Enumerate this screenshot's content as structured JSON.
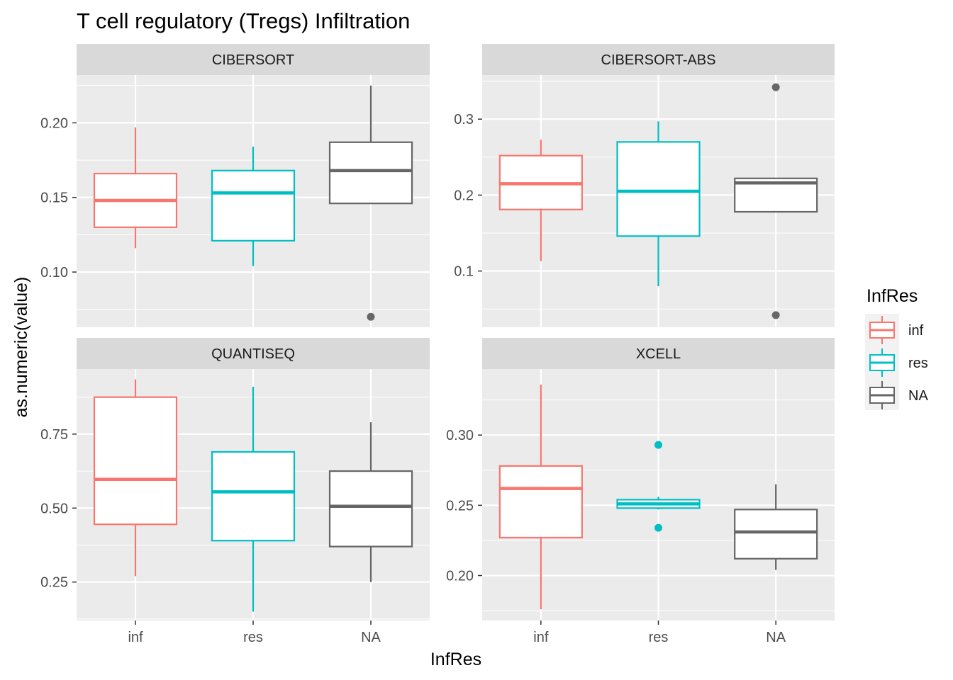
{
  "title": "T cell regulatory (Tregs) Infiltration",
  "xlabel": "InfRes",
  "ylabel": "as.numeric(value)",
  "legend": {
    "title": "InfRes",
    "items": [
      {
        "label": "inf",
        "color": "#F8766D"
      },
      {
        "label": "res",
        "color": "#00BFC4"
      },
      {
        "label": "NA",
        "color": "#666666"
      }
    ]
  },
  "chart_data": {
    "type": "box",
    "categories": [
      "inf",
      "res",
      "NA"
    ],
    "colors": {
      "inf": "#F8766D",
      "res": "#00BFC4",
      "NA": "#666666"
    },
    "grid": true,
    "legend_position": "right",
    "panels": [
      {
        "name": "CIBERSORT",
        "ylim": [
          0.063,
          0.232
        ],
        "yticks": [
          0.1,
          0.15,
          0.2
        ],
        "ytick_labels": [
          "0.10",
          "0.15",
          "0.20"
        ],
        "boxes": [
          {
            "category": "inf",
            "whisker_low": 0.116,
            "q1": 0.13,
            "median": 0.148,
            "q3": 0.166,
            "whisker_high": 0.197,
            "outliers": []
          },
          {
            "category": "res",
            "whisker_low": 0.104,
            "q1": 0.121,
            "median": 0.153,
            "q3": 0.168,
            "whisker_high": 0.184,
            "outliers": []
          },
          {
            "category": "NA",
            "whisker_low": 0.146,
            "q1": 0.146,
            "median": 0.168,
            "q3": 0.187,
            "whisker_high": 0.225,
            "outliers": [
              0.07
            ]
          }
        ]
      },
      {
        "name": "CIBERSORT-ABS",
        "ylim": [
          0.026,
          0.358
        ],
        "yticks": [
          0.1,
          0.2,
          0.3
        ],
        "ytick_labels": [
          "0.1",
          "0.2",
          "0.3"
        ],
        "boxes": [
          {
            "category": "inf",
            "whisker_low": 0.113,
            "q1": 0.181,
            "median": 0.215,
            "q3": 0.252,
            "whisker_high": 0.273,
            "outliers": []
          },
          {
            "category": "res",
            "whisker_low": 0.08,
            "q1": 0.146,
            "median": 0.205,
            "q3": 0.27,
            "whisker_high": 0.297,
            "outliers": []
          },
          {
            "category": "NA",
            "whisker_low": 0.178,
            "q1": 0.178,
            "median": 0.216,
            "q3": 0.222,
            "whisker_high": 0.222,
            "outliers": [
              0.342,
              0.042
            ]
          }
        ]
      },
      {
        "name": "QUANTISEQ",
        "ylim": [
          0.12,
          0.97
        ],
        "yticks": [
          0.25,
          0.5,
          0.75
        ],
        "ytick_labels": [
          "0.25",
          "0.50",
          "0.75"
        ],
        "boxes": [
          {
            "category": "inf",
            "whisker_low": 0.27,
            "q1": 0.445,
            "median": 0.597,
            "q3": 0.875,
            "whisker_high": 0.935,
            "outliers": []
          },
          {
            "category": "res",
            "whisker_low": 0.15,
            "q1": 0.39,
            "median": 0.555,
            "q3": 0.69,
            "whisker_high": 0.91,
            "outliers": []
          },
          {
            "category": "NA",
            "whisker_low": 0.25,
            "q1": 0.37,
            "median": 0.506,
            "q3": 0.625,
            "whisker_high": 0.79,
            "outliers": []
          }
        ]
      },
      {
        "name": "XCELL",
        "ylim": [
          0.168,
          0.347
        ],
        "yticks": [
          0.2,
          0.25,
          0.3
        ],
        "ytick_labels": [
          "0.20",
          "0.25",
          "0.30"
        ],
        "boxes": [
          {
            "category": "inf",
            "whisker_low": 0.176,
            "q1": 0.227,
            "median": 0.262,
            "q3": 0.278,
            "whisker_high": 0.336,
            "outliers": []
          },
          {
            "category": "res",
            "whisker_low": 0.247,
            "q1": 0.248,
            "median": 0.251,
            "q3": 0.254,
            "whisker_high": 0.256,
            "outliers": [
              0.293,
              0.234
            ]
          },
          {
            "category": "NA",
            "whisker_low": 0.204,
            "q1": 0.212,
            "median": 0.231,
            "q3": 0.247,
            "whisker_high": 0.265,
            "outliers": []
          }
        ]
      }
    ]
  }
}
